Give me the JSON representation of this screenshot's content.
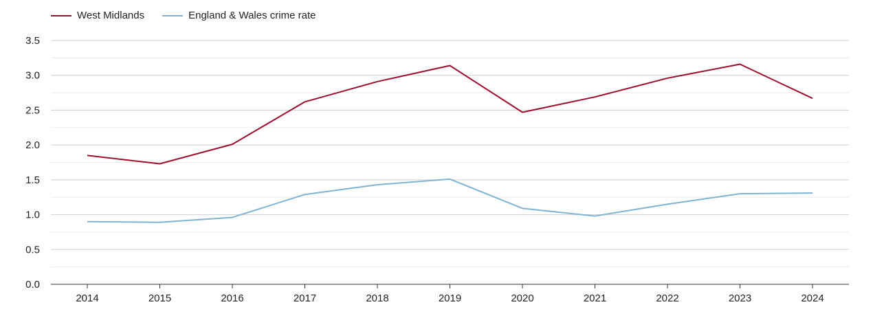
{
  "chart_data": {
    "type": "line",
    "x": [
      "2014",
      "2015",
      "2016",
      "2017",
      "2018",
      "2019",
      "2020",
      "2021",
      "2022",
      "2023",
      "2024"
    ],
    "series": [
      {
        "name": "West Midlands",
        "color": "#9b0e2e",
        "values": [
          1.85,
          1.73,
          2.01,
          2.62,
          2.91,
          3.14,
          2.47,
          2.69,
          2.96,
          3.16,
          2.67
        ]
      },
      {
        "name": "England & Wales crime rate",
        "color": "#7fb2d3",
        "values": [
          0.9,
          0.89,
          0.96,
          1.29,
          1.43,
          1.51,
          1.09,
          0.98,
          1.15,
          1.3,
          1.31
        ]
      }
    ],
    "ylim": [
      0,
      3.5
    ],
    "yticks": [
      "0.0",
      "0.5",
      "1.0",
      "1.5",
      "2.0",
      "2.5",
      "3.0",
      "3.5"
    ],
    "grid": true,
    "legend_position": "top-left"
  }
}
